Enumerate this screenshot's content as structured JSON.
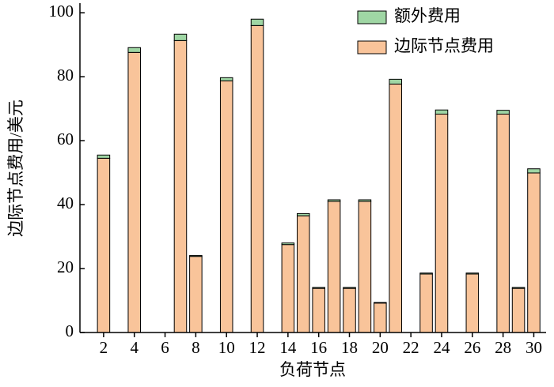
{
  "chart_data": {
    "type": "bar",
    "stacked": true,
    "xlabel": "负荷节点",
    "ylabel": "边际节点费用/美元",
    "x": [
      2,
      4,
      7,
      8,
      10,
      12,
      14,
      15,
      16,
      17,
      18,
      19,
      20,
      21,
      23,
      24,
      26,
      28,
      29,
      30
    ],
    "series": [
      {
        "name": "边际节点费用",
        "color": "#f9c49a",
        "values": [
          54.5,
          87.6,
          91.3,
          23.8,
          78.7,
          96,
          27.5,
          36.5,
          13.8,
          41,
          13.8,
          41,
          9.2,
          77.7,
          18.3,
          68.3,
          18.3,
          68.3,
          13.8,
          49.9
        ]
      },
      {
        "name": "额外费用",
        "color": "#9fd6a4",
        "values": [
          1,
          1.5,
          2,
          0.3,
          1,
          2,
          0.5,
          0.7,
          0.3,
          0.5,
          0.3,
          0.5,
          0.2,
          1.5,
          0.3,
          1.3,
          0.3,
          1.2,
          0.3,
          1.3
        ]
      }
    ],
    "xlim": [
      0.46,
      30.8
    ],
    "ylim": [
      0,
      103
    ],
    "xticks": [
      2,
      4,
      6,
      8,
      10,
      12,
      14,
      16,
      18,
      20,
      22,
      24,
      26,
      28,
      30
    ],
    "yticks": [
      0,
      20,
      40,
      60,
      80,
      100
    ],
    "legend": "upper-right"
  }
}
